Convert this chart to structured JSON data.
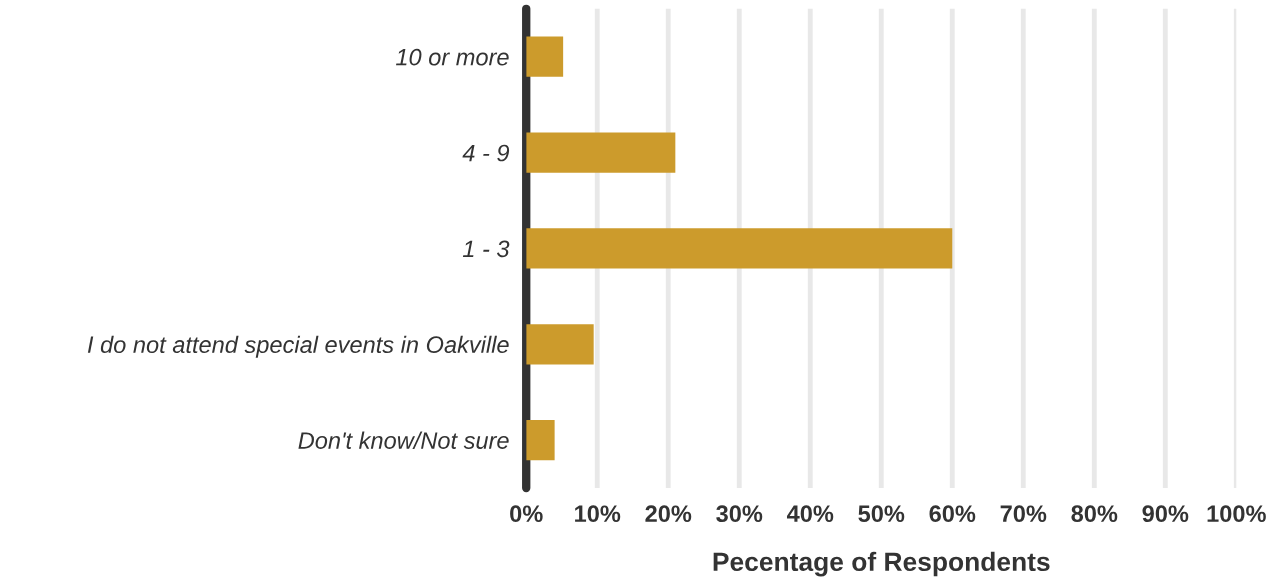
{
  "chart_data": {
    "type": "bar",
    "orientation": "horizontal",
    "xlabel": "Pecentage of Respondents",
    "categories": [
      "10 or more",
      "4 - 9",
      "1 - 3",
      "I do not attend special events in Oakville",
      "Don't know/Not sure"
    ],
    "values": [
      5.2,
      21,
      60,
      9.5,
      4
    ],
    "color": "#cc9b2c",
    "xlim": [
      0,
      100
    ],
    "xticks": [
      {
        "value": 0,
        "label": "0%"
      },
      {
        "value": 10,
        "label": "10%"
      },
      {
        "value": 20,
        "label": "20%"
      },
      {
        "value": 30,
        "label": "30%"
      },
      {
        "value": 40,
        "label": "40%"
      },
      {
        "value": 50,
        "label": "50%"
      },
      {
        "value": 60,
        "label": "60%"
      },
      {
        "value": 70,
        "label": "70%"
      },
      {
        "value": 80,
        "label": "80%"
      },
      {
        "value": 90,
        "label": "90%"
      },
      {
        "value": 100,
        "label": "100%"
      }
    ],
    "grid": "x",
    "legend": false
  }
}
